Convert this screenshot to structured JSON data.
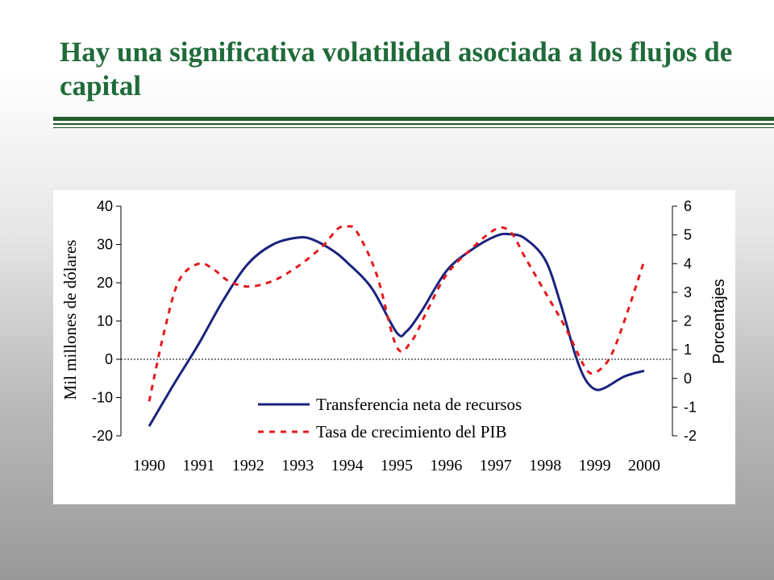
{
  "slide": {
    "title": "Hay una significativa volatilidad asociada a los flujos de capital"
  },
  "chart_data": {
    "type": "line",
    "x_ticks": [
      "1990",
      "1991",
      "1992",
      "1993",
      "1994",
      "1995",
      "1996",
      "1997",
      "1998",
      "1999",
      "2000"
    ],
    "y_left": {
      "label": "Mil millones de dólares",
      "range": [
        -20,
        40
      ],
      "ticks": [
        "40",
        "30",
        "20",
        "10",
        "0",
        "-10",
        "-20"
      ]
    },
    "y_right": {
      "label": "Porcentajes",
      "range": [
        -2,
        6
      ],
      "ticks": [
        "6",
        "5",
        "4",
        "3",
        "2",
        "1",
        "0",
        "-1",
        "-2"
      ]
    },
    "zero_line": true,
    "grid": false,
    "legend_position": "bottom-center",
    "series": [
      {
        "name": "Transferencia neta de recursos",
        "axis": "left",
        "color": "#1a237e",
        "style": "solid",
        "points": [
          [
            1990,
            -17.5
          ],
          [
            1990.5,
            -6.5
          ],
          [
            1991,
            4
          ],
          [
            1991.5,
            15.5
          ],
          [
            1992,
            25
          ],
          [
            1992.5,
            30
          ],
          [
            1993,
            31.8
          ],
          [
            1993.3,
            31.3
          ],
          [
            1993.7,
            28.5
          ],
          [
            1994,
            25.3
          ],
          [
            1994.5,
            18.5
          ],
          [
            1995,
            7
          ],
          [
            1995.2,
            7.3
          ],
          [
            1995.5,
            12.5
          ],
          [
            1996,
            23
          ],
          [
            1996.5,
            28.5
          ],
          [
            1997,
            32.2
          ],
          [
            1997.3,
            32.7
          ],
          [
            1997.6,
            31.5
          ],
          [
            1998,
            26
          ],
          [
            1998.3,
            15
          ],
          [
            1998.6,
            1.5
          ],
          [
            1998.8,
            -5
          ],
          [
            1999,
            -7.8
          ],
          [
            1999.2,
            -7.5
          ],
          [
            1999.6,
            -4.5
          ],
          [
            2000,
            -3
          ]
        ]
      },
      {
        "name": "Tasa de crecimiento del PIB",
        "axis": "right",
        "color": "#e31a1c",
        "style": "dashed",
        "points": [
          [
            1990,
            -0.8
          ],
          [
            1990.3,
            1.6
          ],
          [
            1990.6,
            3.4
          ],
          [
            1991,
            4
          ],
          [
            1991.3,
            3.8
          ],
          [
            1991.6,
            3.4
          ],
          [
            1992,
            3.2
          ],
          [
            1992.5,
            3.4
          ],
          [
            1993,
            3.9
          ],
          [
            1993.5,
            4.6
          ],
          [
            1993.8,
            5.2
          ],
          [
            1994,
            5.3
          ],
          [
            1994.2,
            5.1
          ],
          [
            1994.6,
            3.6
          ],
          [
            1995,
            1.1
          ],
          [
            1995.3,
            1.3
          ],
          [
            1995.6,
            2.3
          ],
          [
            1996,
            3.6
          ],
          [
            1996.5,
            4.5
          ],
          [
            1997,
            5.2
          ],
          [
            1997.3,
            5.1
          ],
          [
            1997.6,
            4.2
          ],
          [
            1998,
            3
          ],
          [
            1998.4,
            1.8
          ],
          [
            1998.8,
            0.4
          ],
          [
            1999,
            0.2
          ],
          [
            1999.3,
            0.7
          ],
          [
            1999.6,
            2
          ],
          [
            2000,
            4.1
          ]
        ]
      }
    ]
  }
}
